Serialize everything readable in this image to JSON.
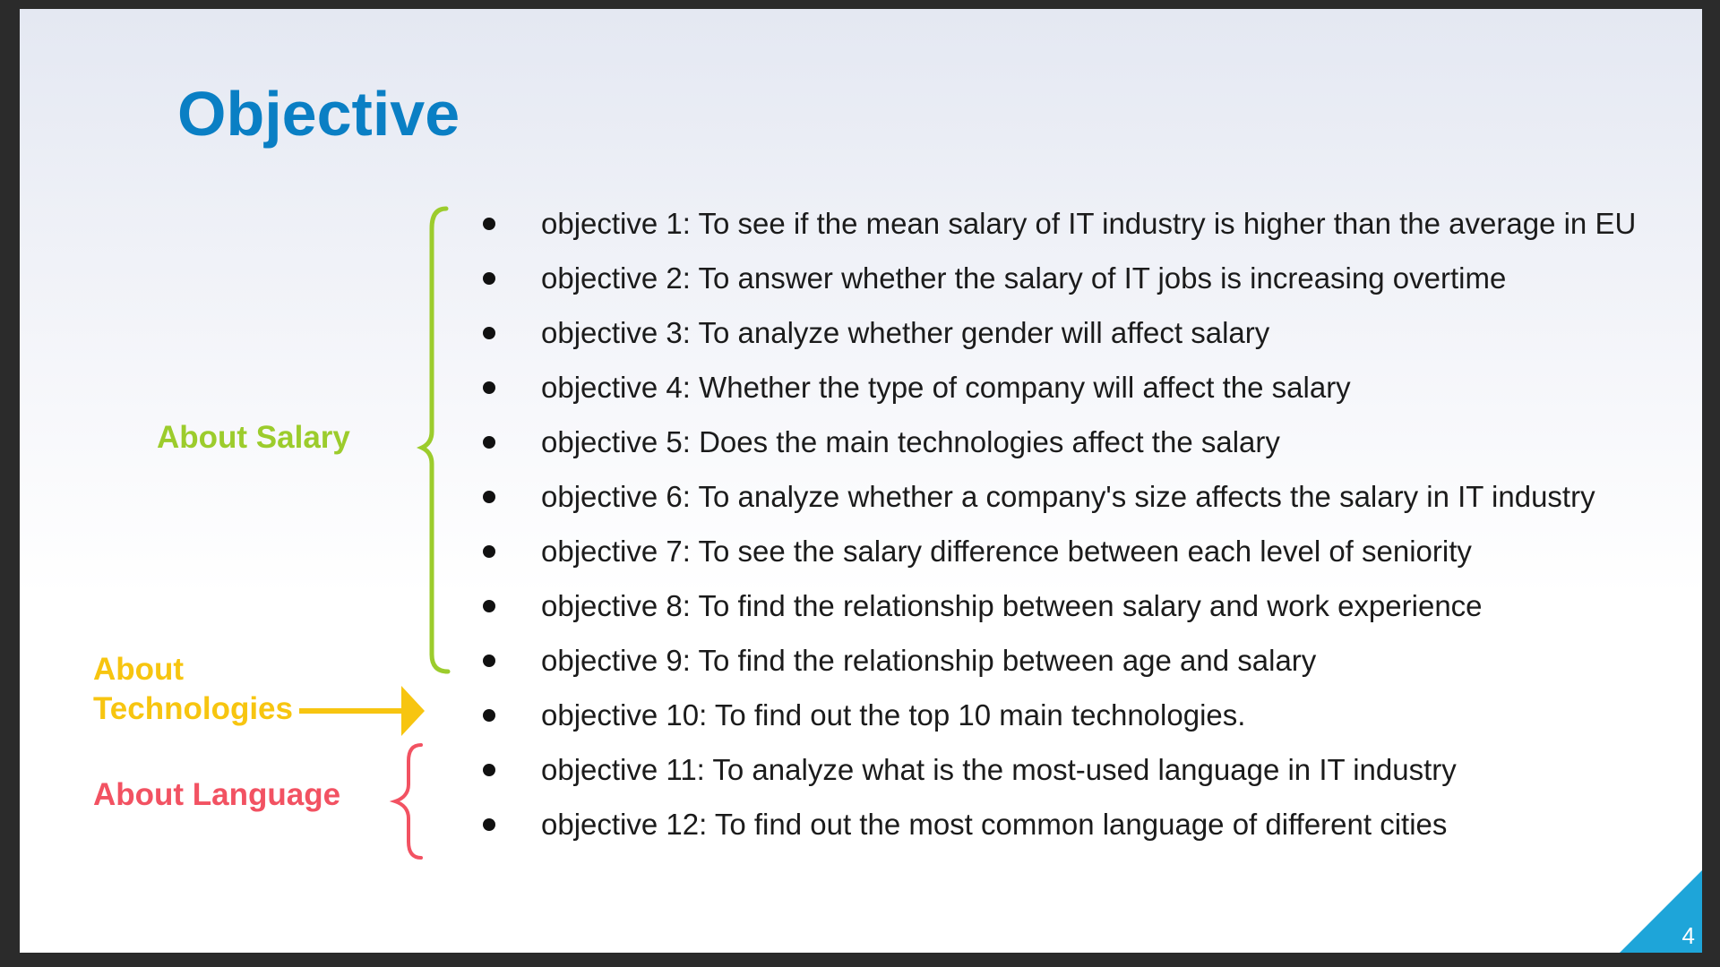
{
  "slide": {
    "title": "Objective",
    "page_number": "4",
    "colors": {
      "title": "#0a7fc4",
      "salary": "#9ccc2c",
      "technologies": "#f7c510",
      "language": "#f25262",
      "corner": "#1ea5d9"
    }
  },
  "groups": {
    "salary": "About Salary",
    "technologies_line1": "About",
    "technologies_line2": "Technologies",
    "language": "About Language"
  },
  "objectives": [
    "objective 1: To see if the mean salary of IT industry is higher than the average in  EU",
    "objective 2: To answer whether the salary of IT jobs is increasing overtime",
    "objective 3: To analyze whether gender will affect salary",
    "objective 4: Whether the type of company will affect the salary",
    "objective 5: Does the main technologies affect the salary",
    "objective 6: To analyze whether a company's size affects the salary in IT industry",
    "objective 7: To see the salary difference between each level of seniority",
    "objective 8: To find the relationship between salary and work experience",
    "objective 9: To find the relationship  between age and salary",
    "objective 10: To find out the top 10 main technologies.",
    "objective 11: To analyze what is the most-used language in IT industry",
    "objective 12: To find out the most common language of different cities"
  ]
}
